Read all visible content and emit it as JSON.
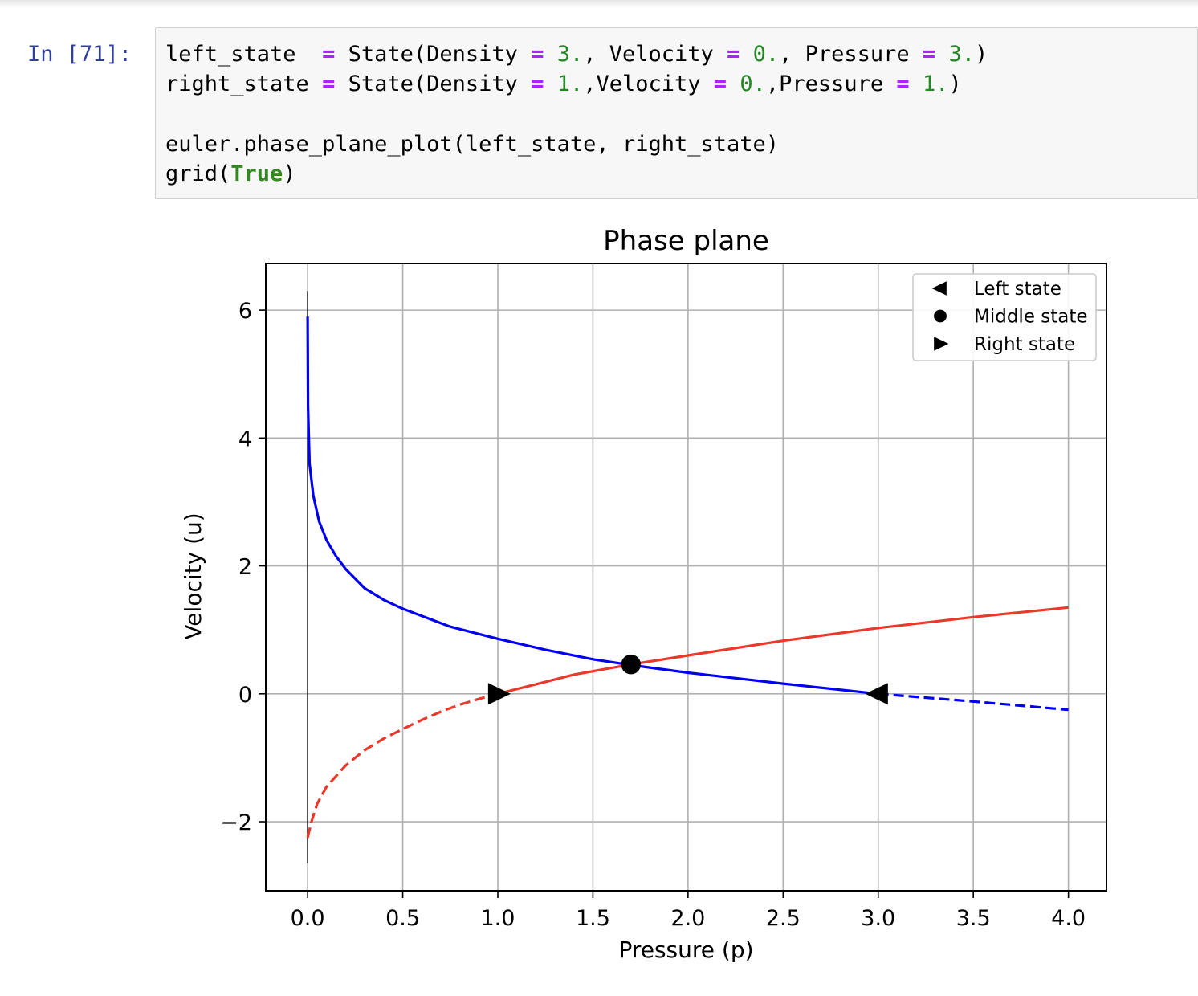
{
  "cell": {
    "prompt": "In [71]:",
    "code_lines": [
      [
        {
          "t": "left_state  ",
          "k": "plain"
        },
        {
          "t": "=",
          "k": "op"
        },
        {
          "t": " State(Density ",
          "k": "plain"
        },
        {
          "t": "=",
          "k": "op"
        },
        {
          "t": " ",
          "k": "plain"
        },
        {
          "t": "3.",
          "k": "num"
        },
        {
          "t": ", Velocity ",
          "k": "plain"
        },
        {
          "t": "=",
          "k": "op"
        },
        {
          "t": " ",
          "k": "plain"
        },
        {
          "t": "0.",
          "k": "num"
        },
        {
          "t": ", Pressure ",
          "k": "plain"
        },
        {
          "t": "=",
          "k": "op"
        },
        {
          "t": " ",
          "k": "plain"
        },
        {
          "t": "3.",
          "k": "num"
        },
        {
          "t": ")",
          "k": "plain"
        }
      ],
      [
        {
          "t": "right_state ",
          "k": "plain"
        },
        {
          "t": "=",
          "k": "op"
        },
        {
          "t": " State(Density ",
          "k": "plain"
        },
        {
          "t": "=",
          "k": "op"
        },
        {
          "t": " ",
          "k": "plain"
        },
        {
          "t": "1.",
          "k": "num"
        },
        {
          "t": ",Velocity ",
          "k": "plain"
        },
        {
          "t": "=",
          "k": "op"
        },
        {
          "t": " ",
          "k": "plain"
        },
        {
          "t": "0.",
          "k": "num"
        },
        {
          "t": ",Pressure ",
          "k": "plain"
        },
        {
          "t": "=",
          "k": "op"
        },
        {
          "t": " ",
          "k": "plain"
        },
        {
          "t": "1.",
          "k": "num"
        },
        {
          "t": ")",
          "k": "plain"
        }
      ],
      [],
      [
        {
          "t": "euler.phase_plane_plot(left_state, right_state)",
          "k": "plain"
        }
      ],
      [
        {
          "t": "grid(",
          "k": "plain"
        },
        {
          "t": "True",
          "k": "kw"
        },
        {
          "t": ")",
          "k": "plain"
        }
      ]
    ]
  },
  "colors": {
    "prompt": "#303f9f",
    "operator": "#aa22ff",
    "number": "#228822",
    "keyword": "#338822",
    "curve_blue": "#0000ee",
    "curve_red": "#e8392b",
    "grid": "#b0b0b0"
  },
  "chart_data": {
    "type": "line",
    "title": "Phase plane",
    "xlabel": "Pressure (p)",
    "ylabel": "Velocity (u)",
    "xlim": [
      -0.22,
      4.2
    ],
    "ylim": [
      -3.08,
      6.73
    ],
    "xticks": [
      0.0,
      0.5,
      1.0,
      1.5,
      2.0,
      2.5,
      3.0,
      3.5,
      4.0
    ],
    "xtick_labels": [
      "0.0",
      "0.5",
      "1.0",
      "1.5",
      "2.0",
      "2.5",
      "3.0",
      "3.5",
      "4.0"
    ],
    "yticks": [
      -2,
      0,
      2,
      4,
      6
    ],
    "ytick_labels": [
      "−2",
      "0",
      "2",
      "4",
      "6"
    ],
    "grid": true,
    "legend_position": "top-right",
    "legend": [
      {
        "marker": "triangle-left",
        "label": "Left state"
      },
      {
        "marker": "circle",
        "label": "Middle state"
      },
      {
        "marker": "triangle-right",
        "label": "Right state"
      }
    ],
    "vertical_line": {
      "x": 0.0,
      "y_range": [
        -2.65,
        6.3
      ]
    },
    "series": [
      {
        "color": "blue",
        "style": "solid",
        "points": [
          [
            0.0,
            5.9
          ],
          [
            0.002,
            4.5
          ],
          [
            0.01,
            3.6
          ],
          [
            0.03,
            3.1
          ],
          [
            0.06,
            2.7
          ],
          [
            0.1,
            2.4
          ],
          [
            0.15,
            2.15
          ],
          [
            0.2,
            1.95
          ],
          [
            0.3,
            1.65
          ],
          [
            0.4,
            1.47
          ],
          [
            0.5,
            1.33
          ],
          [
            0.75,
            1.05
          ],
          [
            1.0,
            0.86
          ],
          [
            1.25,
            0.69
          ],
          [
            1.5,
            0.54
          ],
          [
            1.7,
            0.45
          ],
          [
            2.0,
            0.33
          ],
          [
            2.5,
            0.16
          ],
          [
            3.0,
            0.0
          ]
        ]
      },
      {
        "color": "blue",
        "style": "dashed",
        "points": [
          [
            3.0,
            0.0
          ],
          [
            3.5,
            -0.12
          ],
          [
            4.0,
            -0.25
          ]
        ]
      },
      {
        "color": "red",
        "style": "dashed",
        "points": [
          [
            0.0,
            -2.25
          ],
          [
            0.02,
            -2.0
          ],
          [
            0.05,
            -1.72
          ],
          [
            0.1,
            -1.45
          ],
          [
            0.2,
            -1.12
          ],
          [
            0.3,
            -0.88
          ],
          [
            0.4,
            -0.7
          ],
          [
            0.5,
            -0.55
          ],
          [
            0.6,
            -0.41
          ],
          [
            0.7,
            -0.28
          ],
          [
            0.8,
            -0.17
          ],
          [
            0.9,
            -0.08
          ],
          [
            1.0,
            0.0
          ]
        ]
      },
      {
        "color": "red",
        "style": "solid",
        "points": [
          [
            1.0,
            0.0
          ],
          [
            1.2,
            0.15
          ],
          [
            1.4,
            0.3
          ],
          [
            1.7,
            0.46
          ],
          [
            2.0,
            0.6
          ],
          [
            2.5,
            0.83
          ],
          [
            3.0,
            1.03
          ],
          [
            3.5,
            1.2
          ],
          [
            4.0,
            1.35
          ]
        ]
      }
    ],
    "markers": [
      {
        "marker": "triangle-left",
        "x": 3.0,
        "y": 0.0
      },
      {
        "marker": "circle",
        "x": 1.7,
        "y": 0.46
      },
      {
        "marker": "triangle-right",
        "x": 1.0,
        "y": 0.0
      }
    ]
  }
}
